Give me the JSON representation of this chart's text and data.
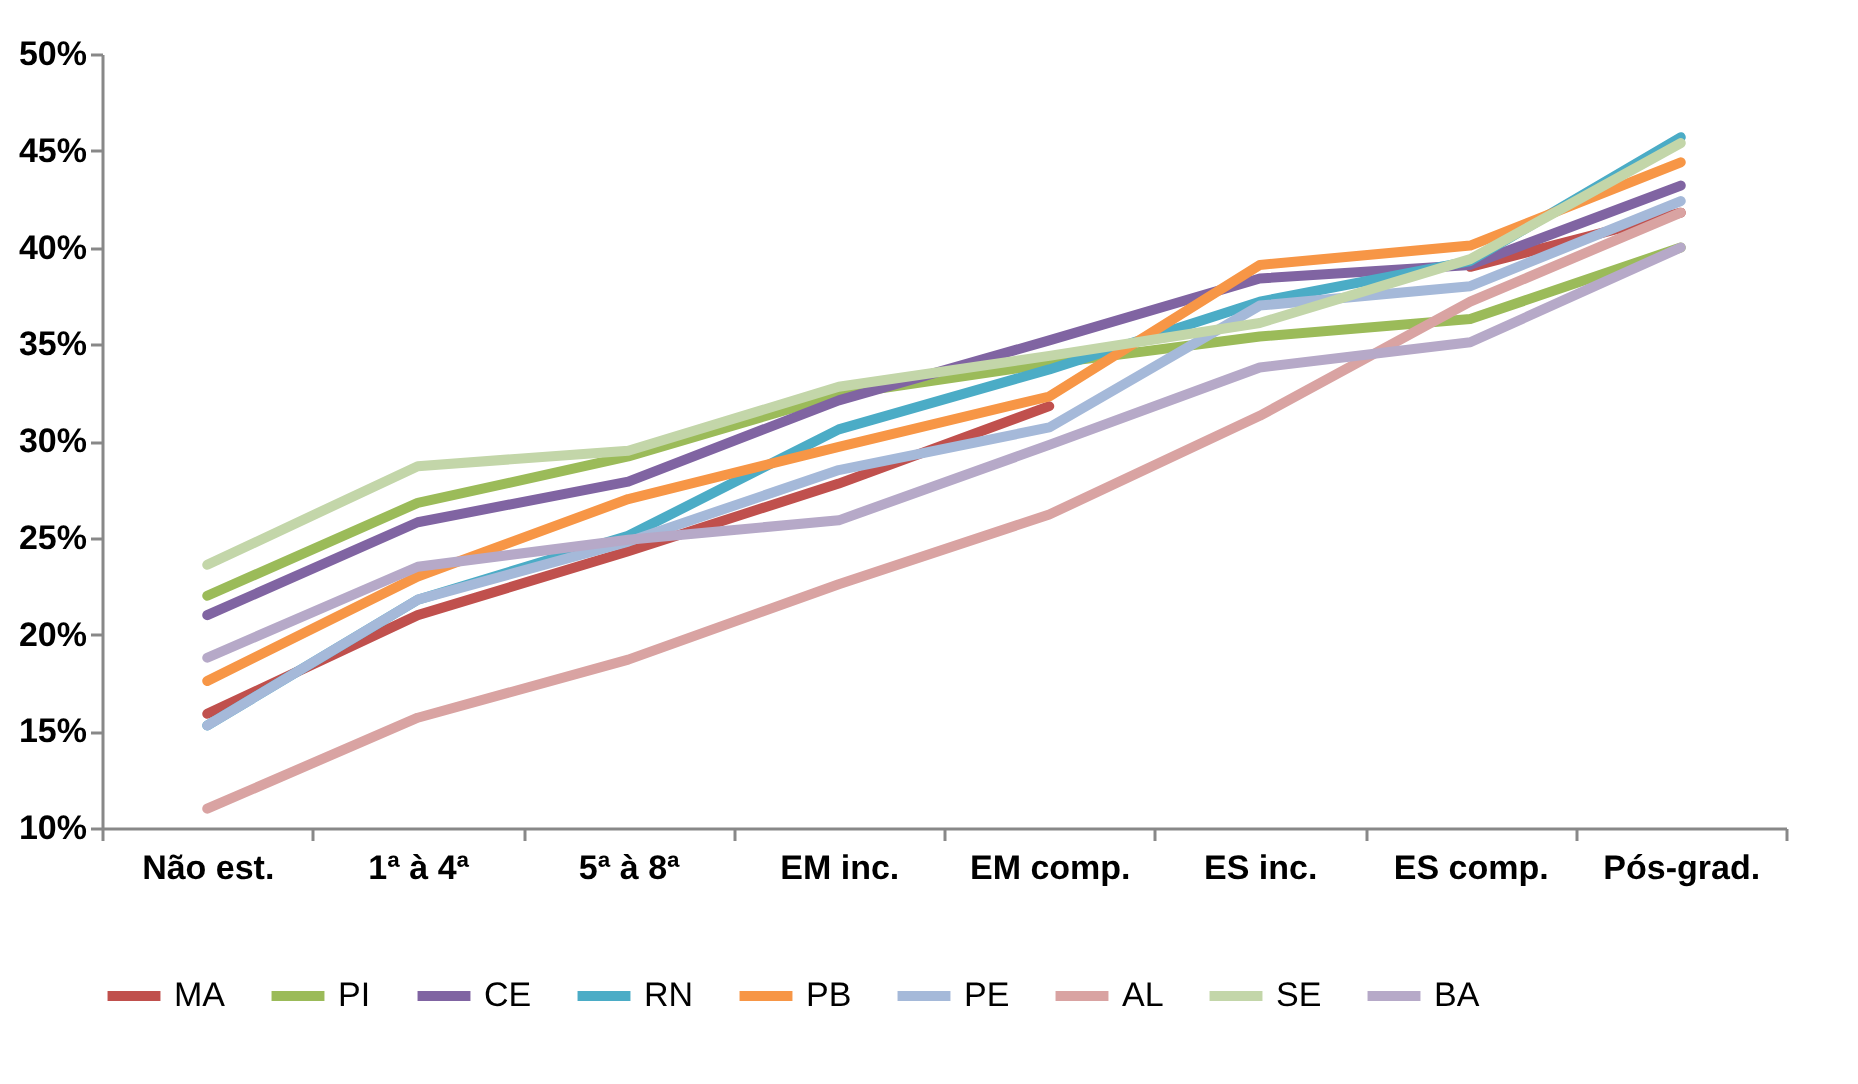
{
  "chart_data": {
    "type": "line",
    "categories": [
      "Não est.",
      "1ª à 4ª",
      "5ª à 8ª",
      "EM inc.",
      "EM comp.",
      "ES inc.",
      "ES comp.",
      "Pós-grad."
    ],
    "ylim": [
      10,
      50
    ],
    "yticks": [
      {
        "value": 10,
        "label": "10%"
      },
      {
        "value": 15,
        "label": "15%"
      },
      {
        "value": 20,
        "label": "20%"
      },
      {
        "value": 25,
        "label": "25%"
      },
      {
        "value": 30,
        "label": "30%"
      },
      {
        "value": 35,
        "label": "35%"
      },
      {
        "value": 40,
        "label": "40%"
      },
      {
        "value": 45,
        "label": "45%"
      },
      {
        "value": 50,
        "label": "50%"
      }
    ],
    "grid": false,
    "legend": "bottom",
    "marker": "none",
    "line_style": "solid",
    "series": [
      {
        "name": "MA",
        "color": "#c0504d",
        "values": [
          15.9,
          21.0,
          24.3,
          27.8,
          31.8,
          null,
          39.0,
          41.8
        ]
      },
      {
        "name": "PI",
        "color": "#9bbb59",
        "values": [
          22.0,
          26.8,
          29.2,
          32.4,
          34.0,
          35.4,
          36.3,
          40.0
        ]
      },
      {
        "name": "CE",
        "color": "#8064a2",
        "values": [
          21.0,
          25.8,
          27.9,
          32.1,
          35.2,
          38.4,
          39.1,
          43.2
        ]
      },
      {
        "name": "RN",
        "color": "#4bacc6",
        "values": [
          15.3,
          21.8,
          25.1,
          30.6,
          33.7,
          37.2,
          39.3,
          45.7
        ]
      },
      {
        "name": "PB",
        "color": "#f79646",
        "values": [
          17.6,
          23.0,
          27.0,
          29.7,
          32.3,
          39.1,
          40.1,
          44.4
        ]
      },
      {
        "name": "PE",
        "color": "#a5b9d9",
        "values": [
          15.3,
          21.8,
          24.8,
          28.5,
          30.7,
          37.0,
          38.0,
          42.4
        ]
      },
      {
        "name": "AL",
        "color": "#d9a3a2",
        "values": [
          11.0,
          15.7,
          18.7,
          22.6,
          26.2,
          31.3,
          37.2,
          41.8
        ]
      },
      {
        "name": "SE",
        "color": "#c3d6a9",
        "values": [
          23.6,
          28.7,
          29.5,
          32.8,
          34.4,
          36.1,
          39.4,
          45.4
        ]
      },
      {
        "name": "BA",
        "color": "#b6a9c8",
        "values": [
          18.8,
          23.5,
          24.9,
          25.9,
          29.8,
          33.8,
          35.1,
          40.0
        ]
      }
    ]
  }
}
